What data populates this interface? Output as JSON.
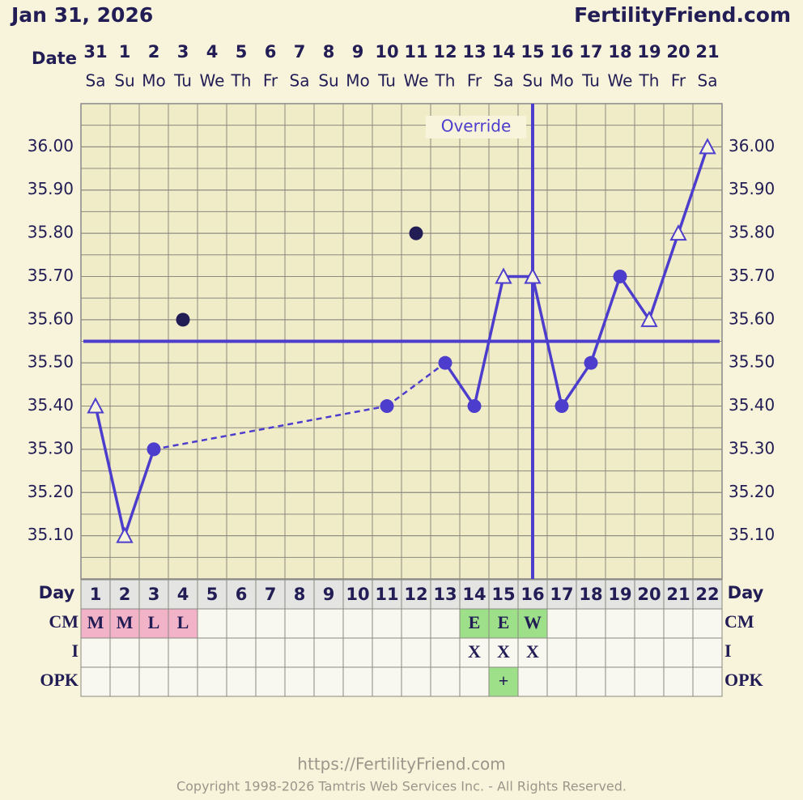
{
  "header": {
    "title": "Jan 31, 2026",
    "brand": "FertilityFriend.com"
  },
  "chart_data": {
    "type": "line",
    "date_label": "Date",
    "dates": [
      31,
      1,
      2,
      3,
      4,
      5,
      6,
      7,
      8,
      9,
      10,
      11,
      12,
      13,
      14,
      15,
      16,
      17,
      18,
      19,
      20,
      21
    ],
    "weekdays": [
      "Sa",
      "Su",
      "Mo",
      "Tu",
      "We",
      "Th",
      "Fr",
      "Sa",
      "Su",
      "Mo",
      "Tu",
      "We",
      "Th",
      "Fr",
      "Sa",
      "Su",
      "Mo",
      "Tu",
      "We",
      "Th",
      "Fr",
      "Sa"
    ],
    "annotation": "Override",
    "temperatures": {
      "color": "#4d3dcc",
      "values": [
        35.4,
        35.1,
        35.3,
        null,
        null,
        null,
        null,
        null,
        null,
        null,
        35.4,
        null,
        35.5,
        35.4,
        35.7,
        35.7,
        35.4,
        35.5,
        35.7,
        35.6,
        35.8,
        36.0
      ],
      "markers": [
        "triangle",
        "triangle",
        "circle",
        null,
        null,
        null,
        null,
        null,
        null,
        null,
        "circle",
        null,
        "circle",
        "circle",
        "triangle",
        "triangle",
        "circle",
        "circle",
        "circle",
        "triangle",
        "triangle",
        "triangle"
      ]
    },
    "discarded": {
      "color": "#221d55",
      "values": [
        null,
        null,
        null,
        35.6,
        null,
        null,
        null,
        null,
        null,
        null,
        null,
        35.8,
        null,
        null,
        null,
        null,
        null,
        null,
        null,
        null,
        null,
        null
      ]
    },
    "coverline": 35.55,
    "ovulation_day": 16,
    "ylim": [
      35.0,
      36.1
    ],
    "yticks": [
      {
        "value": 35.1,
        "label": "35.10"
      },
      {
        "value": 35.2,
        "label": "35.20"
      },
      {
        "value": 35.3,
        "label": "35.30"
      },
      {
        "value": 35.4,
        "label": "35.40"
      },
      {
        "value": 35.5,
        "label": "35.50"
      },
      {
        "value": 35.6,
        "label": "35.60"
      },
      {
        "value": 35.7,
        "label": "35.70"
      },
      {
        "value": 35.8,
        "label": "35.80"
      },
      {
        "value": 35.9,
        "label": "35.90"
      },
      {
        "value": 36.0,
        "label": "36.00"
      }
    ],
    "grid": true
  },
  "table": {
    "day_label": "Day",
    "days": [
      1,
      2,
      3,
      4,
      5,
      6,
      7,
      8,
      9,
      10,
      11,
      12,
      13,
      14,
      15,
      16,
      17,
      18,
      19,
      20,
      21,
      22
    ],
    "rows": [
      {
        "label": "CM",
        "values": [
          "M",
          "M",
          "L",
          "L",
          null,
          null,
          null,
          null,
          null,
          null,
          null,
          null,
          null,
          "E",
          "E",
          "W",
          null,
          null,
          null,
          null,
          null,
          null
        ],
        "colors": [
          "#f2b3c8",
          "#f2b3c8",
          "#f2b3c8",
          "#f2b3c8",
          null,
          null,
          null,
          null,
          null,
          null,
          null,
          null,
          null,
          "#9ee08a",
          "#9ee08a",
          "#9ee08a",
          null,
          null,
          null,
          null,
          null,
          null
        ]
      },
      {
        "label": "I",
        "values": [
          null,
          null,
          null,
          null,
          null,
          null,
          null,
          null,
          null,
          null,
          null,
          null,
          null,
          "X",
          "X",
          "X",
          null,
          null,
          null,
          null,
          null,
          null
        ],
        "colors": [
          null,
          null,
          null,
          null,
          null,
          null,
          null,
          null,
          null,
          null,
          null,
          null,
          null,
          null,
          null,
          null,
          null,
          null,
          null,
          null,
          null,
          null
        ]
      },
      {
        "label": "OPK",
        "values": [
          null,
          null,
          null,
          null,
          null,
          null,
          null,
          null,
          null,
          null,
          null,
          null,
          null,
          null,
          "+",
          null,
          null,
          null,
          null,
          null,
          null,
          null
        ],
        "colors": [
          null,
          null,
          null,
          null,
          null,
          null,
          null,
          null,
          null,
          null,
          null,
          null,
          null,
          null,
          "#9ee08a",
          null,
          null,
          null,
          null,
          null,
          null,
          null
        ]
      }
    ]
  },
  "footer": {
    "url": "https://FertilityFriend.com",
    "copyright": "Copyright 1998-2026 Tamtris Web Services Inc. - All Rights Reserved."
  }
}
